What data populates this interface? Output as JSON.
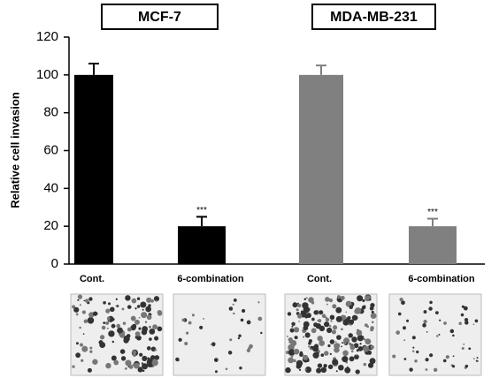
{
  "chart_data": {
    "type": "bar",
    "groups": [
      "MCF-7",
      "MDA-MB-231"
    ],
    "categories": [
      "Cont.",
      "6-combination",
      "Cont.",
      "6-combination"
    ],
    "values": [
      100,
      20,
      100,
      20
    ],
    "errors": [
      6,
      5,
      5,
      4
    ],
    "annotations": [
      null,
      "***",
      null,
      "***"
    ],
    "colors": [
      "#000000",
      "#000000",
      "#808080",
      "#808080"
    ],
    "y_label": "Relative cell invasion",
    "ylim": [
      0,
      120
    ],
    "yticks": [
      0,
      20,
      40,
      60,
      80,
      100,
      120
    ]
  }
}
